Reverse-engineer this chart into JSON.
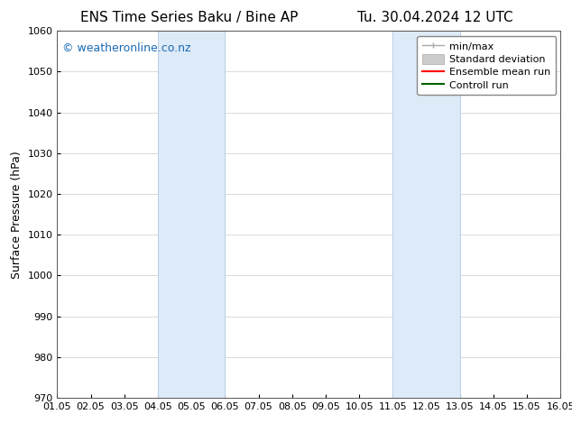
{
  "title_left": "ENS Time Series Baku / Bine AP",
  "title_right": "Tu. 30.04.2024 12 UTC",
  "ylabel": "Surface Pressure (hPa)",
  "ylim": [
    970,
    1060
  ],
  "yticks": [
    970,
    980,
    990,
    1000,
    1010,
    1020,
    1030,
    1040,
    1050,
    1060
  ],
  "xtick_labels": [
    "01.05",
    "02.05",
    "03.05",
    "04.05",
    "05.05",
    "06.05",
    "07.05",
    "08.05",
    "09.05",
    "10.05",
    "11.05",
    "12.05",
    "13.05",
    "14.05",
    "15.05",
    "16.05"
  ],
  "xlim": [
    0,
    15
  ],
  "bg_color": "#ffffff",
  "shaded_regions": [
    {
      "xmin": 3,
      "xmax": 5,
      "color": "#ddeaf7"
    },
    {
      "xmin": 10,
      "xmax": 12,
      "color": "#ddeaf7"
    }
  ],
  "shaded_border_color": "#b8cfe8",
  "watermark_text": "© weatheronline.co.nz",
  "watermark_color": "#1a6bb5",
  "legend_items": [
    {
      "label": "min/max"
    },
    {
      "label": "Standard deviation"
    },
    {
      "label": "Ensemble mean run"
    },
    {
      "label": "Controll run"
    }
  ],
  "title_fontsize": 11,
  "axis_fontsize": 9,
  "tick_fontsize": 8,
  "watermark_fontsize": 9,
  "legend_fontsize": 8
}
